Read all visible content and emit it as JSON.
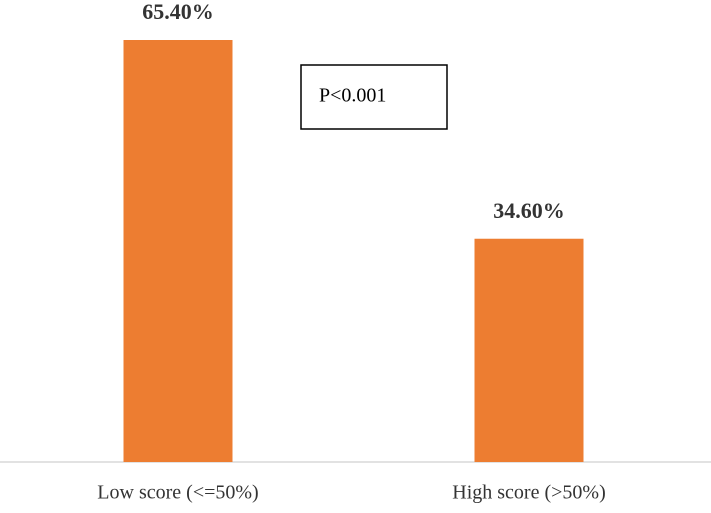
{
  "chart_data": {
    "type": "bar",
    "categories": [
      "Low score (<=50%)",
      "High score (>50%)"
    ],
    "values": [
      65.4,
      34.6
    ],
    "value_labels": [
      "65.40%",
      "34.60%"
    ],
    "color": "#ed7d31",
    "annotation": "P<0.001"
  }
}
